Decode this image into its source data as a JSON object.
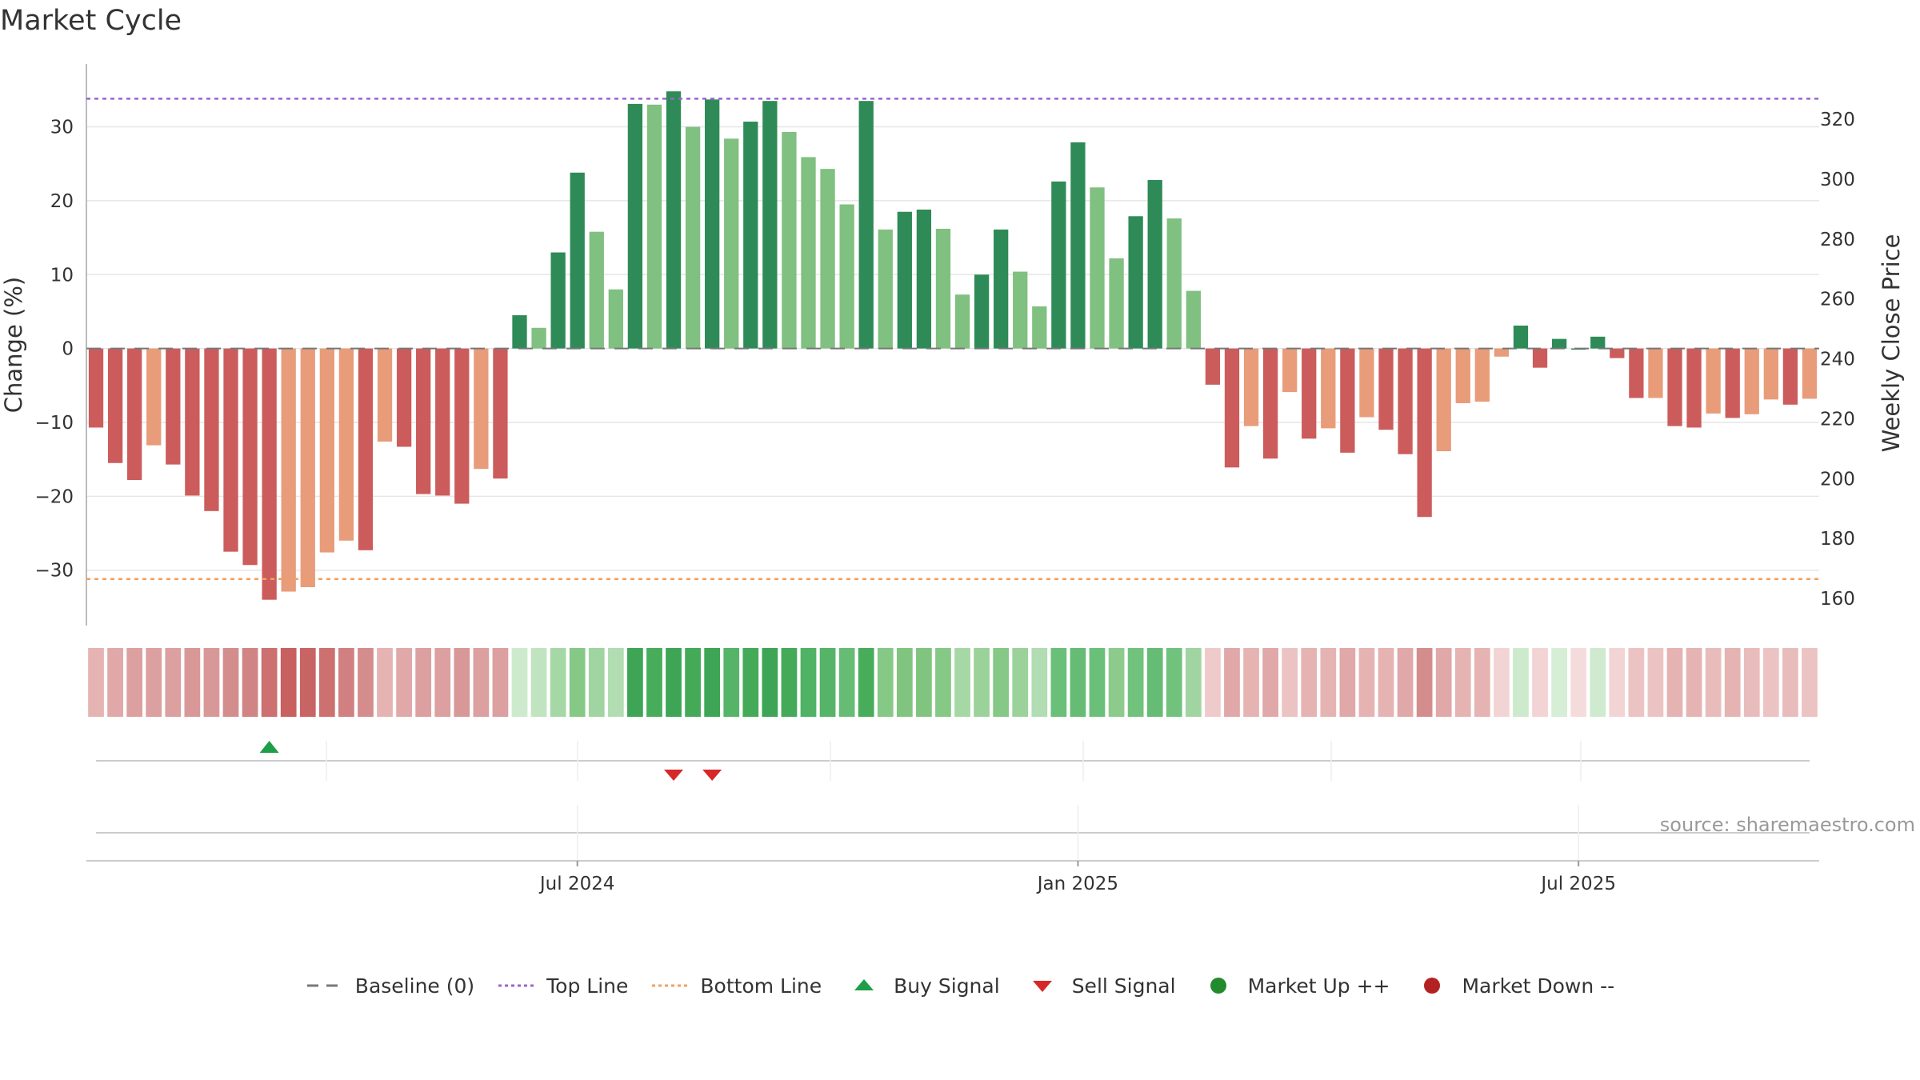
{
  "title": "Market Cycle",
  "source": "source: sharemaestro.com",
  "chart_data": {
    "type": "bar",
    "y_left": {
      "label": "Change (%)",
      "ticks": [
        30,
        20,
        10,
        0,
        -10,
        -20,
        -30
      ],
      "tick_labels": [
        "30",
        "20",
        "10",
        "0",
        "−10",
        "−20",
        "−30"
      ],
      "range": [
        -37.5,
        38.5
      ]
    },
    "y_right": {
      "label": "Weekly Close Price",
      "ticks": [
        160,
        180,
        200,
        220,
        240,
        260,
        280,
        300,
        320
      ],
      "tick_labels": [
        "160",
        "180",
        "200",
        "220",
        "240",
        "260",
        "280",
        "300",
        "320"
      ]
    },
    "x_ticks": [
      {
        "index": 25,
        "label": "Jul 2024"
      },
      {
        "index": 51,
        "label": "Jan 2025"
      },
      {
        "index": 77,
        "label": "Jul 2025"
      }
    ],
    "top_line": 33.8,
    "bottom_line": -31.2,
    "baseline": 0,
    "values": [
      -10.7,
      -15.5,
      -17.8,
      -13.1,
      -15.7,
      -19.9,
      -22.0,
      -27.5,
      -29.3,
      -34.0,
      -32.9,
      -32.3,
      -27.6,
      -26.0,
      -27.3,
      -12.6,
      -13.3,
      -19.7,
      -19.9,
      -21.0,
      -16.3,
      -17.6,
      4.5,
      2.8,
      13.0,
      23.8,
      15.8,
      8.0,
      33.1,
      33.0,
      34.8,
      30.0,
      33.7,
      28.4,
      30.7,
      33.5,
      29.3,
      25.9,
      24.3,
      19.5,
      33.5,
      16.1,
      18.5,
      18.8,
      16.2,
      7.3,
      10.0,
      16.1,
      10.4,
      5.7,
      22.6,
      27.9,
      21.8,
      12.2,
      17.9,
      22.8,
      17.6,
      7.8,
      -4.9,
      -16.1,
      -10.5,
      -14.9,
      -5.9,
      -12.2,
      -10.8,
      -14.1,
      -9.3,
      -11.0,
      -14.3,
      -22.8,
      -13.9,
      -7.4,
      -7.2,
      -1.1,
      3.1,
      -2.6,
      1.3,
      0.0,
      1.6,
      -1.3,
      -6.7,
      -6.7,
      -10.5,
      -10.7,
      -8.8,
      -9.4,
      -8.9,
      -6.9,
      -7.6,
      -6.8
    ],
    "bar_colors": [
      "#cc5c5c",
      "#cc5c5c",
      "#cc5c5c",
      "#e89c7a",
      "#cc5c5c",
      "#cc5c5c",
      "#cc5c5c",
      "#cc5c5c",
      "#cc5c5c",
      "#cc5c5c",
      "#e89c7a",
      "#e89c7a",
      "#e89c7a",
      "#e89c7a",
      "#cc5c5c",
      "#e89c7a",
      "#cc5c5c",
      "#cc5c5c",
      "#cc5c5c",
      "#cc5c5c",
      "#e89c7a",
      "#cc5c5c",
      "#2e8b57",
      "#80c080",
      "#2e8b57",
      "#2e8b57",
      "#80c080",
      "#80c080",
      "#2e8b57",
      "#80c080",
      "#2e8b57",
      "#80c080",
      "#2e8b57",
      "#80c080",
      "#2e8b57",
      "#2e8b57",
      "#80c080",
      "#80c080",
      "#80c080",
      "#80c080",
      "#2e8b57",
      "#80c080",
      "#2e8b57",
      "#2e8b57",
      "#80c080",
      "#80c080",
      "#2e8b57",
      "#2e8b57",
      "#80c080",
      "#80c080",
      "#2e8b57",
      "#2e8b57",
      "#80c080",
      "#80c080",
      "#2e8b57",
      "#2e8b57",
      "#80c080",
      "#80c080",
      "#cc5c5c",
      "#cc5c5c",
      "#e89c7a",
      "#cc5c5c",
      "#e89c7a",
      "#cc5c5c",
      "#e89c7a",
      "#cc5c5c",
      "#e89c7a",
      "#cc5c5c",
      "#cc5c5c",
      "#cc5c5c",
      "#e89c7a",
      "#e89c7a",
      "#e89c7a",
      "#e89c7a",
      "#2e8b57",
      "#cc5c5c",
      "#2e8b57",
      "#2e8b57",
      "#2e8b57",
      "#cc5c5c",
      "#cc5c5c",
      "#e89c7a",
      "#cc5c5c",
      "#cc5c5c",
      "#e89c7a",
      "#cc5c5c",
      "#e89c7a",
      "#e89c7a",
      "#cc5c5c",
      "#e89c7a"
    ],
    "heatmap_colors": [
      "#e6b3b3",
      "#e0a8a8",
      "#dca0a0",
      "#dca0a0",
      "#dca0a0",
      "#d89898",
      "#d89898",
      "#d48d8d",
      "#d08484",
      "#cc7070",
      "#c96060",
      "#c86464",
      "#cc7070",
      "#d08080",
      "#d48c8c",
      "#e6b3b3",
      "#e0a8a8",
      "#dca0a0",
      "#dca0a0",
      "#d89898",
      "#dca0a0",
      "#dca0a0",
      "#cdeacd",
      "#c0e4c0",
      "#a6d8a6",
      "#86c886",
      "#a0d4a0",
      "#b2dcb2",
      "#3da555",
      "#48ad5a",
      "#3da555",
      "#44aa58",
      "#3da555",
      "#55b468",
      "#44aa58",
      "#3da555",
      "#44aa58",
      "#50b264",
      "#55b468",
      "#66bc74",
      "#48ad5a",
      "#86c886",
      "#80c480",
      "#80c480",
      "#86c886",
      "#a6d8a6",
      "#9ad29a",
      "#86c886",
      "#9ad29a",
      "#b2dcb2",
      "#6ac078",
      "#66bc74",
      "#6ac078",
      "#8ccb8c",
      "#70c27c",
      "#66bc74",
      "#70c27c",
      "#a0d4a0",
      "#efcaca",
      "#e0a8a8",
      "#e6b3b3",
      "#e0a8a8",
      "#ecc3c3",
      "#e6b3b3",
      "#e6b3b3",
      "#e0a8a8",
      "#e6b3b3",
      "#e6b3b3",
      "#e0a8a8",
      "#d48d8d",
      "#e0a8a8",
      "#e6b3b3",
      "#e6b3b3",
      "#f2d4d4",
      "#cdeacd",
      "#f2d4d4",
      "#d6eed6",
      "#f5dcdc",
      "#cfeacf",
      "#f2d4d4",
      "#ecc3c3",
      "#ecc3c3",
      "#e6b3b3",
      "#e6b3b3",
      "#e9bcbc",
      "#e6b3b3",
      "#e9bcbc",
      "#ecc3c3",
      "#e9bcbc",
      "#ecc3c3"
    ],
    "buy_signals": [
      9
    ],
    "sell_signals": [
      30,
      32
    ],
    "legend": [
      {
        "key": "baseline",
        "label": "Baseline (0)",
        "color": "#777777"
      },
      {
        "key": "top",
        "label": "Top Line",
        "color": "#9966cc"
      },
      {
        "key": "bottom",
        "label": "Bottom Line",
        "color": "#f0a060"
      },
      {
        "key": "buy",
        "label": "Buy Signal",
        "color": "#1f9e4a"
      },
      {
        "key": "sell",
        "label": "Sell Signal",
        "color": "#d62828"
      },
      {
        "key": "up",
        "label": "Market Up ++",
        "color": "#238b2e"
      },
      {
        "key": "down",
        "label": "Market Down --",
        "color": "#b22222"
      }
    ]
  }
}
